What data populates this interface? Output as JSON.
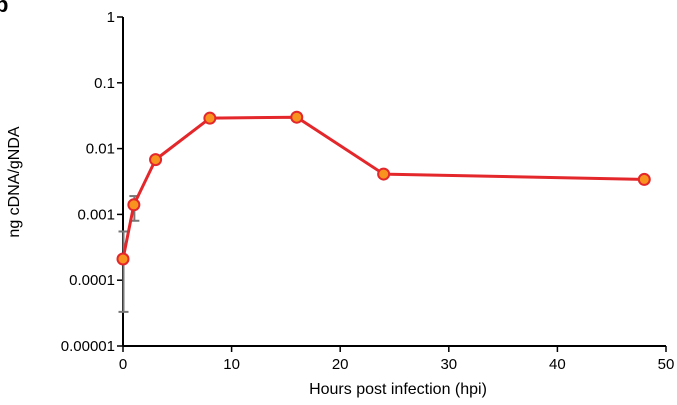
{
  "chart_data": {
    "type": "line",
    "panel_label": "b",
    "title": "",
    "xlabel": "Hours post infection (hpi)",
    "ylabel": "ng cDNA/gNDA",
    "xlim": [
      0,
      50
    ],
    "ylim": [
      1e-05,
      1
    ],
    "y_scale": "log",
    "grid": false,
    "legend": "none",
    "x_ticks": [
      0,
      10,
      20,
      30,
      40,
      50
    ],
    "x_tick_labels": [
      "0",
      "10",
      "20",
      "30",
      "40",
      "50"
    ],
    "y_ticks": [
      1e-05,
      0.0001,
      0.001,
      0.01,
      0.1,
      1
    ],
    "y_tick_labels": [
      "0.00001",
      "0.0001",
      "0.001",
      "0.01",
      "0.1",
      "1"
    ],
    "series": [
      {
        "x": [
          0,
          1,
          3,
          8,
          16,
          24,
          48
        ],
        "y": [
          0.00021,
          0.0014,
          0.0068,
          0.029,
          0.03,
          0.0041,
          0.0034
        ],
        "error_low": [
          3.3e-05,
          0.0008,
          null,
          null,
          null,
          null,
          null
        ],
        "error_high": [
          0.00055,
          0.0019,
          null,
          null,
          null,
          null,
          null
        ]
      }
    ],
    "colors": {
      "line": "#e3272b",
      "marker_fill": "#f7931e",
      "marker_stroke": "#e3272b",
      "error_bar": "#777777",
      "axis": "#000000"
    }
  }
}
